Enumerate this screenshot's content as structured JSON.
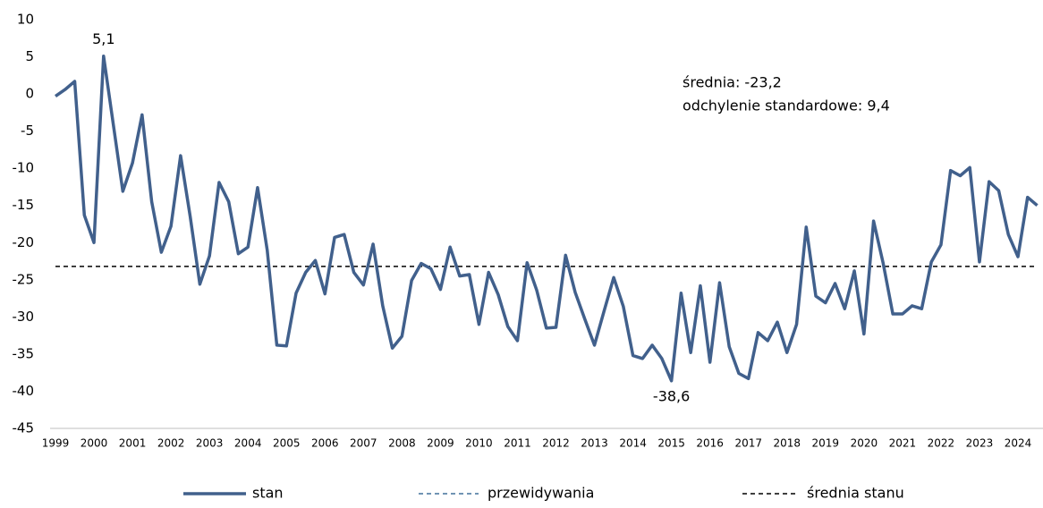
{
  "chart_data": {
    "type": "line",
    "categories": [
      "1999",
      null,
      null,
      null,
      "2000",
      null,
      null,
      null,
      "2001",
      null,
      null,
      null,
      "2002",
      null,
      null,
      null,
      "2003",
      null,
      null,
      null,
      "2004",
      null,
      null,
      null,
      "2005",
      null,
      null,
      null,
      "2006",
      null,
      null,
      null,
      "2007",
      null,
      null,
      null,
      "2008",
      null,
      null,
      null,
      "2009",
      null,
      null,
      null,
      "2010",
      null,
      null,
      null,
      "2011",
      null,
      null,
      null,
      "2012",
      null,
      null,
      null,
      "2013",
      null,
      null,
      null,
      "2014",
      null,
      null,
      null,
      "2015",
      null,
      null,
      null,
      "2016",
      null,
      null,
      null,
      "2017",
      null,
      null,
      null,
      "2018",
      null,
      null,
      null,
      "2019",
      null,
      null,
      null,
      "2020",
      null,
      null,
      null,
      "2021",
      null,
      null,
      null,
      "2022",
      null,
      null,
      null,
      "2023",
      null,
      null,
      null,
      "2024",
      null,
      null
    ],
    "series": [
      {
        "name": "stan",
        "color": "#41608c",
        "values": [
          -0.3,
          0.6,
          1.7,
          -16.3,
          -20,
          5.1,
          -4,
          -13.1,
          -9.3,
          -2.8,
          -14.5,
          -21.3,
          -17.8,
          -8.3,
          -16.5,
          -25.6,
          -21.8,
          -11.9,
          -14.5,
          -21.5,
          -20.6,
          -12.6,
          -21,
          -33.8,
          -33.9,
          -26.8,
          -24,
          -22.4,
          -26.9,
          -19.3,
          -18.9,
          -24,
          -25.7,
          -20.2,
          -28.5,
          -34.2,
          -32.6,
          -25.1,
          -22.8,
          -23.5,
          -26.3,
          -20.6,
          -24.5,
          -24.3,
          -31,
          -24,
          -27,
          -31.3,
          -33.2,
          -22.7,
          -26.4,
          -31.5,
          -31.4,
          -21.7,
          -26.7,
          -30.3,
          -33.8,
          -29.2,
          -24.7,
          -28.6,
          -35.2,
          -35.6,
          -33.8,
          -35.6,
          -38.6,
          -26.8,
          -34.8,
          -25.8,
          -36.1,
          -25.4,
          -34,
          -37.6,
          -38.3,
          -32.1,
          -33.2,
          -30.7,
          -34.8,
          -31,
          -17.9,
          -27.2,
          -28.1,
          -25.5,
          -28.9,
          -23.8,
          -32.3,
          -17.1,
          -22.8,
          -29.6,
          -29.6,
          -28.5,
          -28.9,
          -22.6,
          -20.3,
          -10.3,
          -11,
          -9.9,
          -22.6,
          -11.8,
          -13,
          -18.9,
          -21.9,
          -13.9,
          -15
        ],
        "value_labels": [
          null,
          null,
          null,
          null,
          null,
          "5,1",
          null,
          null,
          null,
          null,
          null,
          null,
          null,
          null,
          null,
          null,
          null,
          null,
          null,
          null,
          null,
          null,
          null,
          null,
          null,
          null,
          null,
          null,
          null,
          null,
          null,
          null,
          null,
          null,
          null,
          null,
          null,
          null,
          null,
          null,
          null,
          null,
          null,
          null,
          null,
          null,
          null,
          null,
          null,
          null,
          null,
          null,
          null,
          null,
          null,
          null,
          null,
          null,
          null,
          null,
          null,
          null,
          null,
          null,
          "-38,6",
          null,
          null,
          null,
          null,
          null,
          null,
          null,
          null,
          null,
          null,
          null,
          null,
          null,
          null,
          null,
          null,
          null,
          null,
          null,
          null,
          null,
          null,
          null,
          null,
          null,
          null,
          null,
          null,
          null,
          null,
          null,
          null,
          null,
          null,
          null,
          null,
          null,
          null
        ]
      }
    ],
    "forecast": {
      "name": "przewidywania",
      "color": "#41719c"
    },
    "mean_line": {
      "name": "średnia stanu",
      "value": -23.2,
      "color": "#000000"
    },
    "annotations": [
      "średnia: -23,2",
      "odchylenie standardowe: 9,4"
    ],
    "ylim": [
      -45,
      10
    ],
    "yticks": [
      10,
      5,
      0,
      -5,
      -10,
      -15,
      -20,
      -25,
      -30,
      -35,
      -40,
      -45
    ],
    "legend": "bottom"
  }
}
